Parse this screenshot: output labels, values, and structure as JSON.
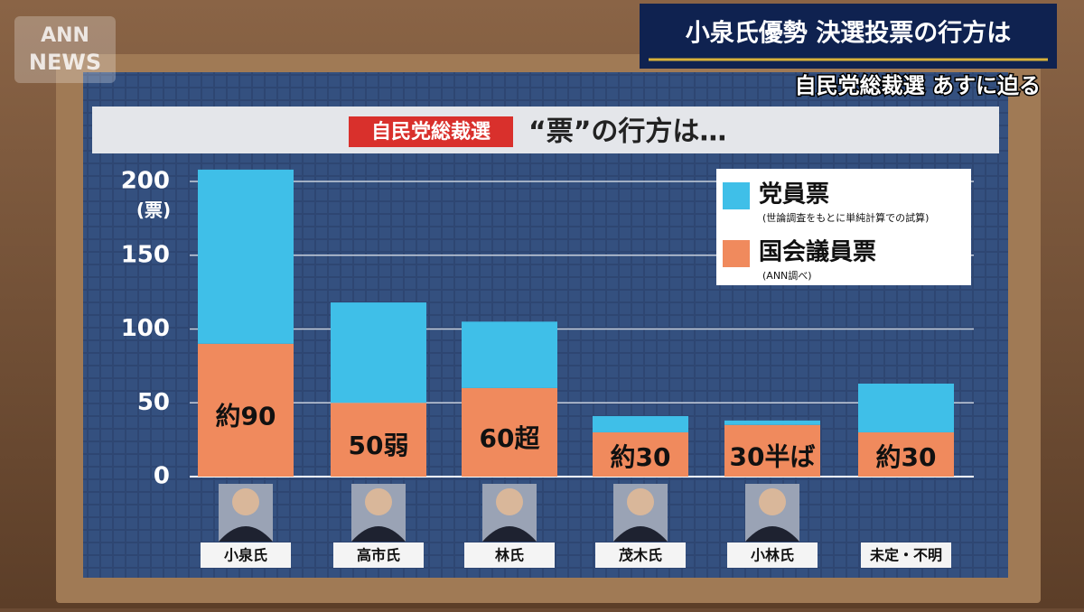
{
  "broadcast": {
    "logo": [
      "ANN",
      "NEWS"
    ],
    "headline": "小泉氏優勢 決選投票の行方は",
    "subheadline": "自民党総裁選 あすに迫る"
  },
  "chart_data": {
    "type": "stacked_bar",
    "title_tag": "自民党総裁選",
    "title": "“票”の行方は…",
    "y_label": "(票)",
    "categories": [
      "小泉氏",
      "高市氏",
      "林氏",
      "茂木氏",
      "小林氏",
      "未定・不明"
    ],
    "series": [
      {
        "name": "国会議員票",
        "note": "(ANN調べ)",
        "color": "#f08a5d",
        "values": [
          90,
          50,
          60,
          30,
          35,
          30
        ],
        "value_labels": [
          "約90",
          "50弱",
          "60超",
          "約30",
          "30半ば",
          "約30"
        ]
      },
      {
        "name": "党員票",
        "note": "(世論調査をもとに単純計算での試算)",
        "color": "#3fbfe8",
        "values": [
          118,
          68,
          45,
          11,
          3,
          33
        ]
      }
    ],
    "legend_order": [
      1,
      0
    ],
    "ylim": [
      0,
      215
    ],
    "yticks": [
      0,
      50,
      100,
      150,
      200
    ],
    "grid": true
  }
}
